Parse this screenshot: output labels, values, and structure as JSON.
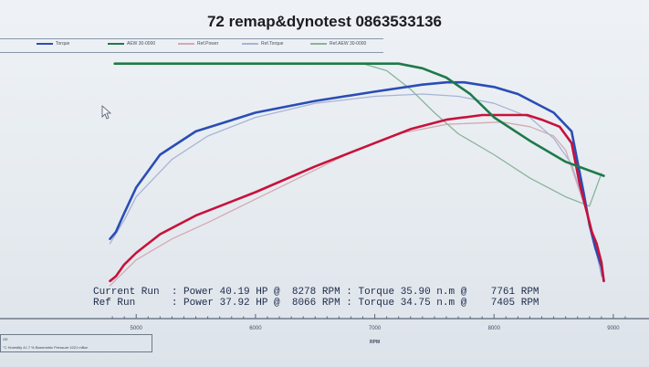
{
  "header": {
    "title": "72 remap&dynotest 0863533136"
  },
  "legend": [
    {
      "label": "Torque",
      "color": "#2a4db5"
    },
    {
      "label": "AEW 30-0000",
      "color": "#1e7a48"
    },
    {
      "label": "Ref.Power",
      "color": "#d4aab4"
    },
    {
      "label": "Ref.Torque",
      "color": "#a8b4d4"
    },
    {
      "label": "Ref.AEW 30-0000",
      "color": "#8ab49a"
    }
  ],
  "summary": {
    "current_label": "Current Run",
    "current_power": "40.19 HP",
    "current_power_rpm": "8278 RPM",
    "current_torque": "35.90 n.m",
    "current_torque_rpm": "7761 RPM",
    "ref_label": "Ref Run",
    "ref_power": "37.92 HP",
    "ref_power_rpm": "8066 RPM",
    "ref_torque": "34.75 n.m",
    "ref_torque_rpm": "7405 RPM"
  },
  "status_bar": {
    "line1": "GE",
    "line2": "°C  Humidity 41.7 %  Barometric Pressure 1021 mBar"
  },
  "chart_data": {
    "type": "line",
    "title": "72 remap&dynotest 0863533136",
    "xlabel": "RPM",
    "ylabel": "",
    "x_ticks": [
      5000,
      6000,
      7000,
      8000,
      9000
    ],
    "xlim": [
      4700,
      9100
    ],
    "ylim": [
      0,
      100
    ],
    "grid": false,
    "legend_placement": "top-left",
    "series": [
      {
        "name": "Torque",
        "color": "#2a4db5",
        "width": 2.6,
        "x": [
          4780,
          4830,
          4900,
          5000,
          5200,
          5500,
          6000,
          6500,
          7000,
          7400,
          7600,
          7750,
          8000,
          8200,
          8500,
          8650,
          8700,
          8750,
          8800,
          8850,
          8900,
          8920
        ],
        "y": [
          22,
          25,
          33,
          44,
          58,
          68,
          76,
          81,
          85,
          88,
          89,
          89,
          87,
          84,
          76,
          68,
          55,
          42,
          28,
          18,
          10,
          4
        ]
      },
      {
        "name": "Power",
        "color": "#c8123a",
        "width": 2.6,
        "x": [
          4780,
          4830,
          4900,
          5000,
          5200,
          5500,
          6000,
          6500,
          7000,
          7300,
          7600,
          7900,
          8100,
          8278,
          8400,
          8550,
          8650,
          8720,
          8780,
          8820,
          8860,
          8900,
          8920
        ],
        "y": [
          4,
          6,
          11,
          16,
          24,
          32,
          42,
          53,
          63,
          69,
          73,
          75,
          75,
          75,
          73,
          70,
          63,
          45,
          33,
          25,
          20,
          12,
          4
        ]
      },
      {
        "name": "AEW 30-0000",
        "color": "#1e7a48",
        "width": 2.6,
        "x": [
          4820,
          5500,
          6000,
          6500,
          7000,
          7200,
          7400,
          7600,
          7800,
          8000,
          8300,
          8600,
          8920
        ],
        "y": [
          97,
          97,
          97,
          97,
          97,
          97,
          95,
          91,
          84,
          74,
          64,
          55,
          49
        ]
      },
      {
        "name": "Ref.Power",
        "color": "#d4aab4",
        "width": 1.3,
        "x": [
          4780,
          4900,
          5000,
          5300,
          5600,
          6000,
          6400,
          6800,
          7200,
          7600,
          8066,
          8300,
          8500,
          8600,
          8700,
          8800,
          8900
        ],
        "y": [
          2,
          8,
          13,
          22,
          29,
          39,
          49,
          59,
          67,
          71,
          72,
          70,
          66,
          60,
          45,
          30,
          10
        ]
      },
      {
        "name": "Ref.Torque",
        "color": "#a8b4d4",
        "width": 1.3,
        "x": [
          4780,
          4900,
          5000,
          5300,
          5600,
          6000,
          6500,
          7000,
          7405,
          7700,
          8000,
          8300,
          8500,
          8650,
          8750,
          8850,
          8900
        ],
        "y": [
          20,
          30,
          40,
          56,
          66,
          74,
          80,
          83,
          84,
          83,
          80,
          74,
          65,
          54,
          38,
          18,
          6
        ]
      },
      {
        "name": "Ref.AEW 30-0000",
        "color": "#8ab49a",
        "width": 1.3,
        "x": [
          6900,
          7100,
          7300,
          7500,
          7700,
          8000,
          8300,
          8600,
          8800,
          8900
        ],
        "y": [
          97,
          94,
          86,
          76,
          67,
          58,
          48,
          40,
          36,
          50
        ]
      }
    ]
  }
}
